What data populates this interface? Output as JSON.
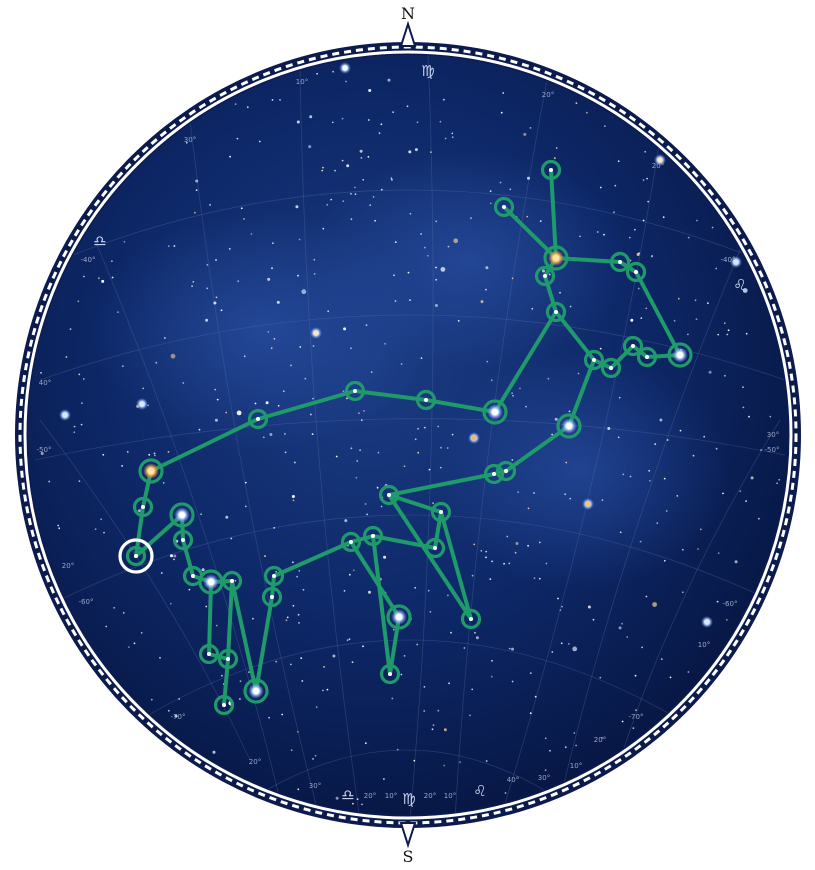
{
  "compass": {
    "north": "N",
    "south": "S"
  },
  "colors": {
    "sky_inner": "#1a3a80",
    "sky_outer": "#061540",
    "ring_dark": "#0c1b4d",
    "link": "#1f9a6b",
    "selected": "#ffffff"
  },
  "zodiac_labels": [
    {
      "id": "virgo-top",
      "symbol": "♍"
    },
    {
      "id": "libra-left",
      "symbol": "♎"
    },
    {
      "id": "leo-right",
      "symbol": "♌"
    },
    {
      "id": "libra-bottom",
      "symbol": "♎"
    },
    {
      "id": "virgo-bottom",
      "symbol": "♍"
    },
    {
      "id": "leo-bottom",
      "symbol": "♌"
    }
  ],
  "grid_labels": [
    "10°",
    "20°",
    "30°",
    "20°",
    "-40°",
    "-40°",
    "40°",
    "-50°",
    "-50°",
    "30°",
    "20°",
    "-60°",
    "-60°",
    "10°",
    "-70°",
    "-70°",
    "20°",
    "30°",
    "20°",
    "10°",
    "20°",
    "10°",
    "40°",
    "30°",
    "10°",
    "20°"
  ],
  "constellation": {
    "nodes": [
      {
        "id": "n1",
        "star": "white"
      },
      {
        "id": "n2",
        "star": "white"
      },
      {
        "id": "n3",
        "star": "orange"
      },
      {
        "id": "n4",
        "star": "white"
      },
      {
        "id": "n5",
        "star": "white"
      },
      {
        "id": "n6",
        "star": "white"
      },
      {
        "id": "n7",
        "star": "white"
      },
      {
        "id": "n8",
        "star": "white"
      },
      {
        "id": "n9",
        "star": "white"
      },
      {
        "id": "n10",
        "star": "white"
      },
      {
        "id": "n11",
        "star": "white"
      },
      {
        "id": "n12",
        "star": "bright"
      },
      {
        "id": "n13",
        "star": "bright"
      },
      {
        "id": "n14",
        "star": "white"
      },
      {
        "id": "n15",
        "star": "white"
      },
      {
        "id": "n16",
        "star": "bright"
      },
      {
        "id": "n17",
        "star": "white"
      },
      {
        "id": "n18",
        "star": "white"
      },
      {
        "id": "n19",
        "star": "white"
      },
      {
        "id": "n20",
        "star": "orange"
      },
      {
        "id": "n21",
        "star": "white"
      },
      {
        "id": "n22",
        "star": "bright"
      },
      {
        "id": "n23",
        "star": "white"
      },
      {
        "id": "n24",
        "star": "white"
      },
      {
        "id": "n25",
        "star": "bright"
      },
      {
        "id": "n26",
        "star": "white"
      },
      {
        "id": "n27",
        "star": "white"
      },
      {
        "id": "n28",
        "star": "white"
      },
      {
        "id": "n29",
        "star": "white"
      },
      {
        "id": "n30",
        "star": "bright"
      },
      {
        "id": "n31",
        "star": "white"
      },
      {
        "id": "n32",
        "star": "white"
      },
      {
        "id": "n33",
        "star": "white"
      },
      {
        "id": "n34",
        "star": "white"
      },
      {
        "id": "n35",
        "star": "white"
      },
      {
        "id": "n36",
        "star": "white"
      },
      {
        "id": "n37",
        "star": "white"
      },
      {
        "id": "n38",
        "star": "white"
      },
      {
        "id": "n39",
        "star": "bright"
      },
      {
        "id": "n40",
        "star": "white"
      },
      {
        "id": "n41",
        "star": "white"
      },
      {
        "id": "n42",
        "star": "white"
      },
      {
        "id": "n43",
        "star": "orange"
      },
      {
        "id": "n44",
        "star": "white"
      },
      {
        "id": "n45",
        "star": "bright"
      },
      {
        "id": "n46",
        "star": "white"
      },
      {
        "id": "n47",
        "star": "white"
      }
    ],
    "selected": "n47"
  }
}
